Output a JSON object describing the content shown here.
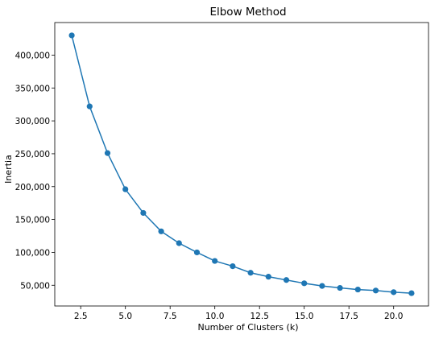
{
  "chart_data": {
    "type": "line",
    "title": "Elbow Method",
    "xlabel": "Number of Clusters (k)",
    "ylabel": "Inertia",
    "xlim": [
      1.05,
      21.95
    ],
    "ylim": [
      18500,
      449500
    ],
    "xticks": [
      2.5,
      5.0,
      7.5,
      10.0,
      12.5,
      15.0,
      17.5,
      20.0
    ],
    "xtick_labels": [
      "2.5",
      "5.0",
      "7.5",
      "10.0",
      "12.5",
      "15.0",
      "17.5",
      "20.0"
    ],
    "yticks": [
      50000,
      100000,
      150000,
      200000,
      250000,
      300000,
      350000,
      400000
    ],
    "ytick_labels": [
      "50,000",
      "100,000",
      "150,000",
      "200,000",
      "250,000",
      "300,000",
      "350,000",
      "400,000"
    ],
    "grid": false,
    "marker": "circle",
    "series": [
      {
        "x": [
          2,
          3,
          4,
          5,
          6,
          7,
          8,
          9,
          10,
          11,
          12,
          13,
          14,
          15,
          16,
          17,
          18,
          19,
          20,
          21
        ],
        "values": [
          430000,
          322000,
          251000,
          196000,
          160000,
          132000,
          114000,
          100000,
          87000,
          79000,
          69000,
          63000,
          58000,
          53000,
          49000,
          46000,
          43500,
          42000,
          39500,
          38000
        ]
      }
    ],
    "colors": {
      "line": "#1f77b4",
      "marker": "#1f77b4",
      "axes": "#000000"
    }
  }
}
